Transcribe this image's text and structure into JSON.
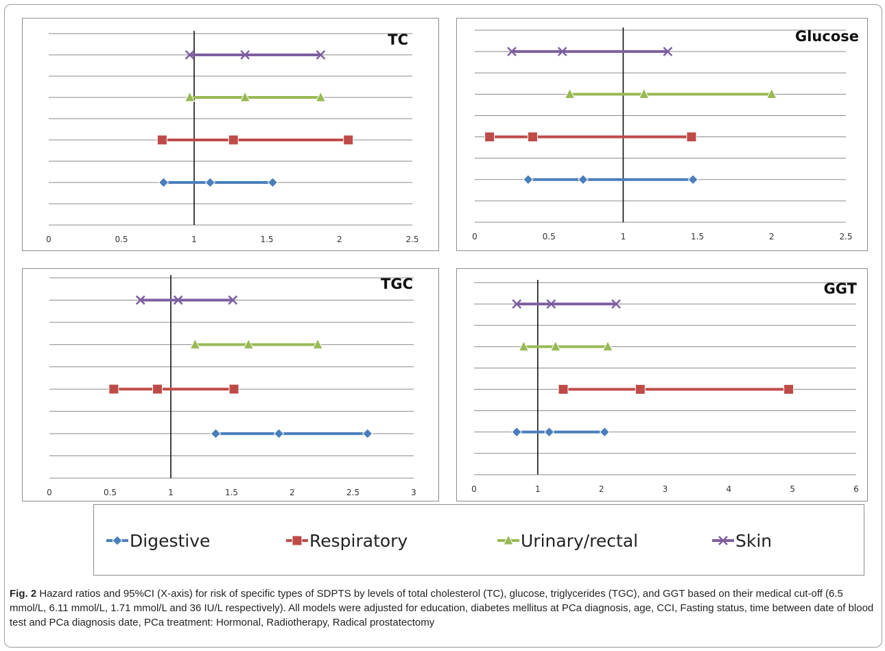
{
  "chart_data": [
    {
      "type": "scatter",
      "title": "TC",
      "xlim": [
        0,
        2.5
      ],
      "xticks": [
        "0",
        "0.5",
        "1",
        "1.5",
        "2",
        "2.5"
      ],
      "reference_line": 1,
      "series": [
        {
          "name": "Skin",
          "lower": 0.97,
          "hr": 1.35,
          "upper": 1.87
        },
        {
          "name": "Urinary/rectal",
          "lower": 0.97,
          "hr": 1.35,
          "upper": 1.87
        },
        {
          "name": "Respiratory",
          "lower": 0.78,
          "hr": 1.27,
          "upper": 2.06
        },
        {
          "name": "Digestive",
          "lower": 0.79,
          "hr": 1.11,
          "upper": 1.54
        }
      ]
    },
    {
      "type": "scatter",
      "title": "Glucose",
      "xlim": [
        0,
        2.5
      ],
      "xticks": [
        "0",
        "0.5",
        "1",
        "1.5",
        "2",
        "2.5"
      ],
      "reference_line": 1,
      "series": [
        {
          "name": "Skin",
          "lower": 0.25,
          "hr": 0.59,
          "upper": 1.3
        },
        {
          "name": "Urinary/rectal",
          "lower": 0.64,
          "hr": 1.14,
          "upper": 2.0
        },
        {
          "name": "Respiratory",
          "lower": 0.1,
          "hr": 0.39,
          "upper": 1.46
        },
        {
          "name": "Digestive",
          "lower": 0.36,
          "hr": 0.73,
          "upper": 1.47
        }
      ]
    },
    {
      "type": "scatter",
      "title": "TGC",
      "xlim": [
        0,
        3
      ],
      "xticks": [
        "0",
        "0.5",
        "1",
        "1.5",
        "2",
        "2.5",
        "3"
      ],
      "reference_line": 1,
      "series": [
        {
          "name": "Skin",
          "lower": 0.75,
          "hr": 1.06,
          "upper": 1.51
        },
        {
          "name": "Urinary/rectal",
          "lower": 1.2,
          "hr": 1.64,
          "upper": 2.21
        },
        {
          "name": "Respiratory",
          "lower": 0.53,
          "hr": 0.89,
          "upper": 1.52
        },
        {
          "name": "Digestive",
          "lower": 1.37,
          "hr": 1.89,
          "upper": 2.62
        }
      ]
    },
    {
      "type": "scatter",
      "title": "GGT",
      "xlim": [
        0,
        6
      ],
      "xticks": [
        "0",
        "1",
        "2",
        "3",
        "4",
        "5",
        "6"
      ],
      "reference_line": 1,
      "series": [
        {
          "name": "Skin",
          "lower": 0.67,
          "hr": 1.21,
          "upper": 2.23
        },
        {
          "name": "Urinary/rectal",
          "lower": 0.78,
          "hr": 1.28,
          "upper": 2.1
        },
        {
          "name": "Respiratory",
          "lower": 1.4,
          "hr": 2.61,
          "upper": 4.94
        },
        {
          "name": "Digestive",
          "lower": 0.67,
          "hr": 1.18,
          "upper": 2.05
        }
      ]
    }
  ],
  "legend": [
    {
      "name": "Digestive",
      "color": "#4a7ebb",
      "marker": "diamond"
    },
    {
      "name": "Respiratory",
      "color": "#be4b48",
      "marker": "square"
    },
    {
      "name": "Urinary/rectal",
      "color": "#98b954",
      "marker": "triangle"
    },
    {
      "name": "Skin",
      "color": "#7d5fa0",
      "marker": "x"
    }
  ],
  "caption": {
    "label": "Fig. 2",
    "text": " Hazard ratios and 95%CI (X-axis) for risk of specific types of SDPTS by levels of total cholesterol (TC), glucose, triglycerides (TGC), and GGT based on their medical cut-off (6.5 mmol/L, 6.11 mmol/L, 1.71 mmol/L and 36 IU/L respectively). All models were adjusted for education, diabetes mellitus at PCa diagnosis, age, CCI, Fasting status, time between date of blood test and PCa diagnosis date, PCa treatment: Hormonal, Radiotherapy, Radical prostatectomy"
  }
}
